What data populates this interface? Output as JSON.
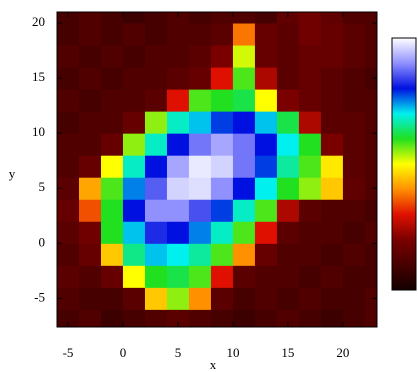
{
  "chart_data": {
    "type": "heatmap",
    "x_label": "x",
    "y_label": "y",
    "xlim": [
      -6,
      23.1
    ],
    "ylim": [
      -7.6,
      21
    ],
    "xticks": [
      -5,
      0,
      5,
      10,
      15,
      20
    ],
    "yticks": [
      -5,
      0,
      5,
      10,
      15,
      20
    ],
    "cell_size": 2,
    "x": [
      -5,
      -3,
      -1,
      1,
      3,
      5,
      7,
      9,
      11,
      13,
      15,
      17,
      19,
      21,
      23
    ],
    "y": [
      -7,
      -5,
      -3,
      -1,
      1,
      3,
      5,
      7,
      9,
      11,
      13,
      15,
      17,
      19,
      21
    ],
    "zlim": [
      0,
      100
    ],
    "colorscale": [
      [
        0,
        "#140000"
      ],
      [
        0.2,
        "#7a0000"
      ],
      [
        0.3,
        "#e01000"
      ],
      [
        0.4,
        "#ff9000"
      ],
      [
        0.5,
        "#ffff00"
      ],
      [
        0.6,
        "#20e020"
      ],
      [
        0.7,
        "#00f0f0"
      ],
      [
        0.8,
        "#0010e0"
      ],
      [
        0.9,
        "#9090ff"
      ],
      [
        1,
        "#ffffff"
      ]
    ],
    "z": [
      [
        10,
        12,
        8,
        10,
        12,
        14,
        12,
        10,
        8,
        10,
        12,
        10,
        8,
        10,
        12
      ],
      [
        12,
        10,
        10,
        14,
        45,
        55,
        40,
        14,
        10,
        12,
        10,
        12,
        10,
        10,
        12
      ],
      [
        14,
        12,
        16,
        50,
        60,
        62,
        58,
        30,
        14,
        12,
        12,
        10,
        12,
        10,
        10
      ],
      [
        12,
        16,
        45,
        65,
        72,
        70,
        66,
        58,
        40,
        16,
        12,
        12,
        10,
        12,
        10
      ],
      [
        14,
        18,
        60,
        72,
        82,
        80,
        75,
        68,
        58,
        30,
        14,
        12,
        12,
        10,
        12
      ],
      [
        16,
        35,
        60,
        80,
        90,
        90,
        85,
        78,
        68,
        58,
        25,
        14,
        12,
        12,
        10
      ],
      [
        14,
        42,
        58,
        75,
        86,
        96,
        97,
        90,
        80,
        70,
        60,
        55,
        45,
        15,
        12
      ],
      [
        12,
        16,
        50,
        68,
        80,
        92,
        98,
        96,
        88,
        78,
        66,
        58,
        48,
        14,
        12
      ],
      [
        12,
        12,
        16,
        55,
        68,
        80,
        88,
        92,
        88,
        80,
        70,
        60,
        20,
        14,
        12
      ],
      [
        10,
        12,
        12,
        16,
        55,
        68,
        72,
        78,
        80,
        72,
        62,
        25,
        14,
        14,
        12
      ],
      [
        12,
        10,
        12,
        12,
        14,
        30,
        58,
        60,
        62,
        50,
        20,
        16,
        14,
        12,
        12
      ],
      [
        10,
        12,
        10,
        12,
        12,
        14,
        16,
        30,
        58,
        25,
        14,
        16,
        14,
        12,
        10
      ],
      [
        12,
        10,
        12,
        10,
        12,
        12,
        14,
        20,
        52,
        16,
        14,
        16,
        16,
        14,
        12
      ],
      [
        10,
        12,
        10,
        12,
        10,
        12,
        12,
        14,
        38,
        16,
        14,
        18,
        16,
        14,
        12
      ],
      [
        10,
        12,
        10,
        8,
        10,
        12,
        10,
        12,
        12,
        10,
        15,
        18,
        15,
        12,
        12
      ]
    ]
  }
}
